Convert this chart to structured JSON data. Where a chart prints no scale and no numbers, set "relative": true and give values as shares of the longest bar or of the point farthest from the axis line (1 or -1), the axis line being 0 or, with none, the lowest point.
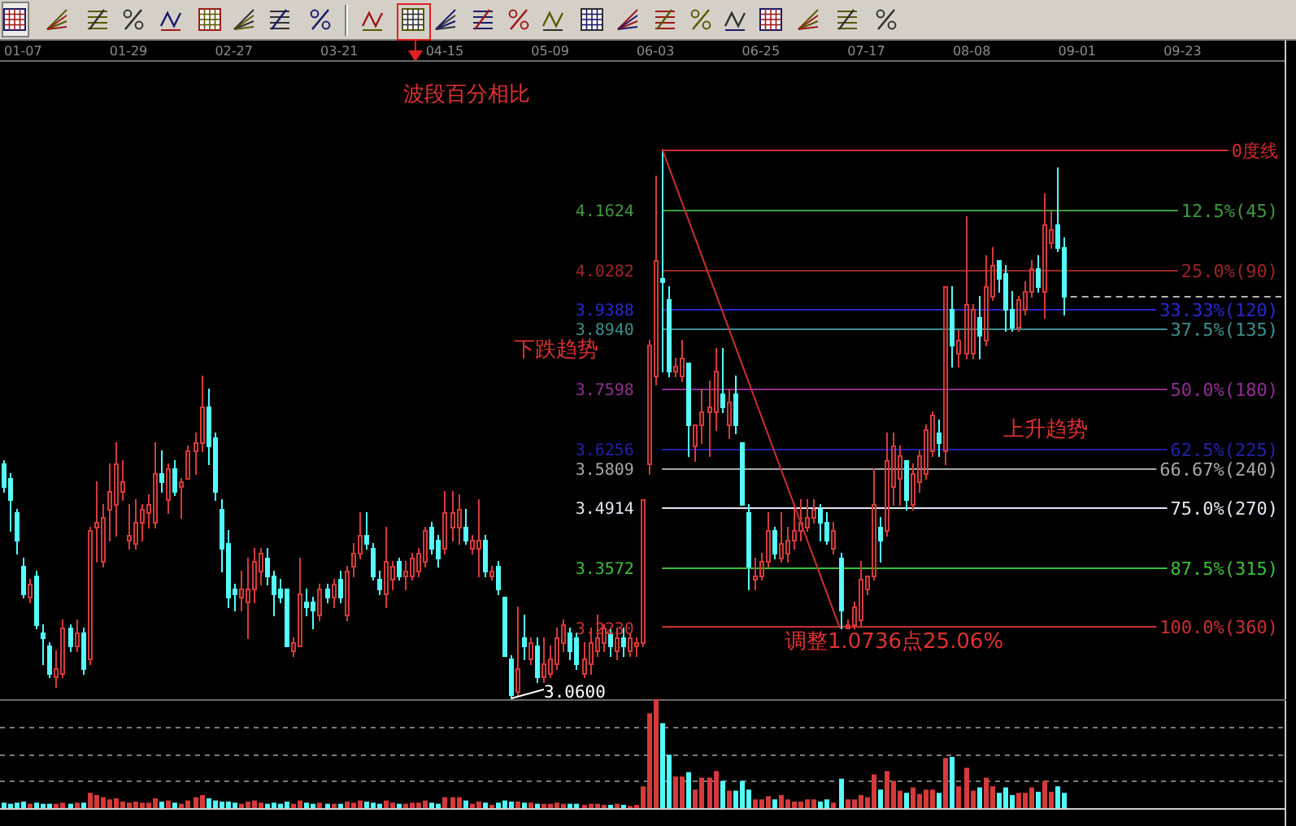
{
  "chart_data": [
    {
      "type": "candlestick",
      "categories": [
        null,
        null,
        null,
        "01-07",
        null,
        null,
        null,
        null,
        null,
        null,
        null,
        null,
        null,
        null,
        null,
        null,
        null,
        null,
        null,
        "01-29",
        null,
        null,
        null,
        null,
        null,
        null,
        null,
        null,
        null,
        null,
        null,
        null,
        null,
        null,
        null,
        "02-27",
        null,
        null,
        null,
        null,
        null,
        null,
        null,
        null,
        null,
        null,
        null,
        null,
        null,
        null,
        null,
        "03-21",
        null,
        null,
        null,
        null,
        null,
        null,
        null,
        null,
        null,
        null,
        null,
        null,
        null,
        null,
        null,
        "04-15",
        null,
        null,
        null,
        null,
        null,
        null,
        null,
        null,
        null,
        null,
        null,
        null,
        null,
        null,
        null,
        "05-09",
        null,
        null,
        null,
        null,
        null,
        null,
        null,
        null,
        null,
        null,
        null,
        null,
        null,
        null,
        null,
        "06-03",
        null,
        null,
        null,
        null,
        null,
        null,
        null,
        null,
        null,
        null,
        null,
        null,
        null,
        null,
        null,
        "06-25",
        null,
        null,
        null,
        null,
        null,
        null,
        null,
        null,
        null,
        null,
        null,
        null,
        null,
        null,
        null,
        "07-17",
        null,
        null,
        null,
        null,
        null,
        null,
        null,
        null,
        null,
        null,
        null,
        null,
        null,
        null,
        null,
        "08-08",
        null,
        null,
        null,
        null,
        null,
        null,
        null,
        null,
        null,
        null,
        null,
        null,
        null,
        null,
        null,
        "09-01",
        null,
        null,
        null,
        null,
        null,
        null,
        null,
        null,
        null,
        null,
        null,
        null,
        null,
        null,
        null,
        "09-23",
        null,
        null,
        null,
        null,
        null,
        null,
        null,
        null,
        null,
        null,
        null,
        null,
        null,
        null,
        null
      ],
      "ohlc": [
        [
          3.59,
          3.6,
          3.53,
          3.54
        ],
        [
          3.56,
          3.57,
          3.44,
          3.51
        ],
        [
          3.48,
          3.49,
          3.39,
          3.42
        ],
        [
          3.36,
          3.38,
          3.29,
          3.3
        ],
        [
          3.29,
          3.33,
          3.28,
          3.32
        ],
        [
          3.34,
          3.35,
          3.22,
          3.23
        ],
        [
          3.21,
          3.23,
          3.14,
          3.2
        ],
        [
          3.18,
          3.19,
          3.11,
          3.12
        ],
        [
          3.11,
          3.17,
          3.09,
          3.13
        ],
        [
          3.12,
          3.24,
          3.11,
          3.22
        ],
        [
          3.22,
          3.23,
          3.17,
          3.18
        ],
        [
          3.18,
          3.24,
          3.17,
          3.21
        ],
        [
          3.21,
          3.22,
          3.12,
          3.13
        ],
        [
          3.15,
          3.45,
          3.14,
          3.44
        ],
        [
          3.45,
          3.55,
          3.37,
          3.46
        ],
        [
          3.37,
          3.5,
          3.36,
          3.47
        ],
        [
          3.49,
          3.59,
          3.42,
          3.53
        ],
        [
          3.5,
          3.64,
          3.43,
          3.59
        ],
        [
          3.53,
          3.6,
          3.51,
          3.55
        ],
        [
          3.42,
          3.5,
          3.4,
          3.43
        ],
        [
          3.41,
          3.51,
          3.4,
          3.46
        ],
        [
          3.46,
          3.5,
          3.42,
          3.49
        ],
        [
          3.48,
          3.52,
          3.45,
          3.5
        ],
        [
          3.46,
          3.64,
          3.45,
          3.57
        ],
        [
          3.57,
          3.62,
          3.53,
          3.55
        ],
        [
          3.51,
          3.59,
          3.48,
          3.58
        ],
        [
          3.58,
          3.6,
          3.52,
          3.53
        ],
        [
          3.54,
          3.56,
          3.47,
          3.55
        ],
        [
          3.56,
          3.63,
          3.56,
          3.62
        ],
        [
          3.62,
          3.66,
          3.57,
          3.64
        ],
        [
          3.64,
          3.79,
          3.62,
          3.72
        ],
        [
          3.72,
          3.76,
          3.59,
          3.63
        ],
        [
          3.65,
          3.66,
          3.51,
          3.53
        ],
        [
          3.49,
          3.51,
          3.35,
          3.4
        ],
        [
          3.41,
          3.44,
          3.27,
          3.29
        ],
        [
          3.31,
          3.32,
          3.26,
          3.3
        ],
        [
          3.29,
          3.35,
          3.26,
          3.31
        ],
        [
          3.28,
          3.38,
          3.2,
          3.31
        ],
        [
          3.31,
          3.4,
          3.28,
          3.37
        ],
        [
          3.35,
          3.4,
          3.32,
          3.39
        ],
        [
          3.38,
          3.4,
          3.32,
          3.34
        ],
        [
          3.34,
          3.35,
          3.25,
          3.3
        ],
        [
          3.31,
          3.33,
          3.28,
          3.29
        ],
        [
          3.31,
          3.31,
          3.18,
          3.18
        ],
        [
          3.17,
          3.2,
          3.16,
          3.19
        ],
        [
          3.18,
          3.38,
          3.18,
          3.3
        ],
        [
          3.28,
          3.31,
          3.25,
          3.27
        ],
        [
          3.28,
          3.29,
          3.22,
          3.26
        ],
        [
          3.25,
          3.32,
          3.24,
          3.31
        ],
        [
          3.31,
          3.32,
          3.28,
          3.29
        ],
        [
          3.29,
          3.33,
          3.27,
          3.32
        ],
        [
          3.33,
          3.35,
          3.28,
          3.29
        ],
        [
          3.25,
          3.36,
          3.24,
          3.35
        ],
        [
          3.36,
          3.41,
          3.34,
          3.39
        ],
        [
          3.39,
          3.48,
          3.38,
          3.43
        ],
        [
          3.43,
          3.48,
          3.4,
          3.41
        ],
        [
          3.4,
          3.41,
          3.33,
          3.34
        ],
        [
          3.33,
          3.35,
          3.3,
          3.31
        ],
        [
          3.3,
          3.45,
          3.27,
          3.37
        ],
        [
          3.33,
          3.37,
          3.31,
          3.36
        ],
        [
          3.37,
          3.38,
          3.33,
          3.34
        ],
        [
          3.34,
          3.37,
          3.31,
          3.35
        ],
        [
          3.34,
          3.39,
          3.33,
          3.38
        ],
        [
          3.35,
          3.4,
          3.34,
          3.39
        ],
        [
          3.37,
          3.45,
          3.36,
          3.44
        ],
        [
          3.45,
          3.46,
          3.39,
          3.4
        ],
        [
          3.42,
          3.43,
          3.36,
          3.38
        ],
        [
          3.4,
          3.53,
          3.39,
          3.48
        ],
        [
          3.45,
          3.53,
          3.42,
          3.48
        ],
        [
          3.45,
          3.52,
          3.41,
          3.49
        ],
        [
          3.45,
          3.49,
          3.41,
          3.42
        ],
        [
          3.4,
          3.43,
          3.39,
          3.42
        ],
        [
          3.4,
          3.51,
          3.34,
          3.42
        ],
        [
          3.42,
          3.43,
          3.34,
          3.35
        ],
        [
          3.34,
          3.36,
          3.33,
          3.35
        ],
        [
          3.36,
          3.37,
          3.3,
          3.31
        ],
        [
          3.29,
          3.29,
          3.16,
          3.16
        ],
        [
          3.15,
          3.16,
          3.06,
          3.07
        ],
        [
          3.08,
          3.27,
          3.07,
          3.13
        ],
        [
          3.2,
          3.25,
          3.15,
          3.18
        ],
        [
          3.15,
          3.2,
          3.14,
          3.19
        ],
        [
          3.18,
          3.2,
          3.1,
          3.11
        ],
        [
          3.11,
          3.2,
          3.1,
          3.14
        ],
        [
          3.12,
          3.18,
          3.11,
          3.15
        ],
        [
          3.14,
          3.22,
          3.13,
          3.2
        ],
        [
          3.19,
          3.24,
          3.17,
          3.23
        ],
        [
          3.21,
          3.22,
          3.15,
          3.17
        ],
        [
          3.2,
          3.21,
          3.13,
          3.14
        ],
        [
          3.12,
          3.19,
          3.11,
          3.15
        ],
        [
          3.14,
          3.22,
          3.12,
          3.19
        ],
        [
          3.17,
          3.25,
          3.16,
          3.2
        ],
        [
          3.19,
          3.23,
          3.17,
          3.22
        ],
        [
          3.21,
          3.22,
          3.16,
          3.18
        ],
        [
          3.17,
          3.22,
          3.15,
          3.2
        ],
        [
          3.2,
          3.22,
          3.16,
          3.18
        ],
        [
          3.17,
          3.21,
          3.16,
          3.2
        ],
        [
          3.18,
          3.2,
          3.16,
          3.19
        ],
        [
          3.19,
          3.51,
          3.18,
          3.51
        ],
        [
          3.59,
          3.87,
          3.57,
          3.86
        ],
        [
          3.79,
          4.24,
          3.77,
          4.05
        ],
        [
          4.01,
          4.3,
          3.8,
          4.0
        ],
        [
          3.96,
          3.99,
          3.79,
          3.8
        ],
        [
          3.8,
          3.83,
          3.79,
          3.81
        ],
        [
          3.79,
          3.87,
          3.78,
          3.83
        ],
        [
          3.82,
          3.82,
          3.61,
          3.68
        ],
        [
          3.63,
          3.68,
          3.6,
          3.68
        ],
        [
          3.68,
          3.76,
          3.64,
          3.71
        ],
        [
          3.71,
          3.78,
          3.61,
          3.72
        ],
        [
          3.71,
          3.85,
          3.67,
          3.8
        ],
        [
          3.75,
          3.85,
          3.71,
          3.72
        ],
        [
          3.68,
          3.76,
          3.65,
          3.73
        ],
        [
          3.75,
          3.79,
          3.66,
          3.68
        ],
        [
          3.64,
          3.64,
          3.5,
          3.5
        ],
        [
          3.48,
          3.5,
          3.31,
          3.36
        ],
        [
          3.33,
          3.38,
          3.31,
          3.34
        ],
        [
          3.34,
          3.39,
          3.33,
          3.37
        ],
        [
          3.37,
          3.48,
          3.36,
          3.44
        ],
        [
          3.44,
          3.45,
          3.38,
          3.39
        ],
        [
          3.38,
          3.48,
          3.37,
          3.41
        ],
        [
          3.39,
          3.45,
          3.37,
          3.42
        ],
        [
          3.42,
          3.49,
          3.4,
          3.44
        ],
        [
          3.44,
          3.51,
          3.42,
          3.46
        ],
        [
          3.45,
          3.51,
          3.44,
          3.47
        ],
        [
          3.47,
          3.51,
          3.46,
          3.49
        ],
        [
          3.49,
          3.5,
          3.42,
          3.46
        ],
        [
          3.46,
          3.48,
          3.41,
          3.42
        ],
        [
          3.4,
          3.46,
          3.39,
          3.44
        ],
        [
          3.38,
          3.39,
          3.22,
          3.26
        ],
        [
          3.22,
          3.24,
          3.22,
          3.23
        ],
        [
          3.23,
          3.28,
          3.22,
          3.27
        ],
        [
          3.24,
          3.37,
          3.23,
          3.33
        ],
        [
          3.31,
          3.34,
          3.3,
          3.34
        ],
        [
          3.34,
          3.58,
          3.33,
          3.5
        ],
        [
          3.45,
          3.47,
          3.37,
          3.42
        ],
        [
          3.44,
          3.66,
          3.43,
          3.6
        ],
        [
          3.54,
          3.66,
          3.5,
          3.63
        ],
        [
          3.56,
          3.63,
          3.5,
          3.61
        ],
        [
          3.6,
          3.6,
          3.49,
          3.51
        ],
        [
          3.5,
          3.59,
          3.49,
          3.57
        ],
        [
          3.55,
          3.62,
          3.53,
          3.61
        ],
        [
          3.57,
          3.68,
          3.56,
          3.67
        ],
        [
          3.62,
          3.71,
          3.61,
          3.7
        ],
        [
          3.66,
          3.69,
          3.61,
          3.64
        ],
        [
          3.62,
          3.99,
          3.59,
          3.99
        ],
        [
          3.94,
          3.99,
          3.81,
          3.86
        ],
        [
          3.84,
          3.89,
          3.81,
          3.87
        ],
        [
          3.84,
          4.15,
          3.83,
          3.95
        ],
        [
          3.84,
          3.95,
          3.83,
          3.94
        ],
        [
          3.92,
          3.97,
          3.83,
          3.88
        ],
        [
          3.87,
          4.06,
          3.86,
          3.99
        ],
        [
          3.97,
          4.08,
          3.96,
          4.04
        ],
        [
          4.05,
          4.05,
          3.98,
          4.01
        ],
        [
          4.02,
          4.04,
          3.89,
          3.94
        ],
        [
          3.94,
          3.98,
          3.89,
          3.9
        ],
        [
          3.9,
          3.97,
          3.89,
          3.96
        ],
        [
          3.94,
          4.0,
          3.93,
          3.98
        ],
        [
          3.98,
          4.05,
          3.97,
          4.03
        ],
        [
          4.03,
          4.06,
          3.98,
          3.99
        ],
        [
          3.98,
          4.2,
          3.92,
          4.13
        ],
        [
          4.09,
          4.16,
          4.08,
          4.12
        ],
        [
          4.13,
          4.26,
          4.07,
          4.08
        ],
        [
          4.08,
          4.1,
          3.93,
          3.97
        ],
        null,
        null,
        null,
        null,
        null,
        null,
        null,
        null,
        null,
        null,
        null,
        null,
        null,
        null,
        null,
        null,
        null,
        null,
        null,
        null,
        null,
        null,
        null,
        null,
        null,
        null,
        null,
        null,
        null,
        null,
        null,
        null,
        null
      ],
      "colors": [
        "#54fcfc",
        "#54fcfc",
        "#54fcfc",
        "#54fcfc",
        "#d63a3a",
        "#54fcfc",
        "#54fcfc",
        "#54fcfc",
        "#d63a3a",
        "#d63a3a",
        "#54fcfc",
        "#d63a3a",
        "#54fcfc",
        "#d63a3a",
        "#d63a3a",
        "#d63a3a",
        "#d63a3a",
        "#d63a3a",
        "#d63a3a",
        "#d63a3a",
        "#d63a3a",
        "#d63a3a",
        "#d63a3a",
        "#d63a3a",
        "#54fcfc",
        "#d63a3a",
        "#54fcfc",
        "#d63a3a",
        "#d63a3a",
        "#d63a3a",
        "#d63a3a",
        "#54fcfc",
        "#54fcfc",
        "#54fcfc",
        "#54fcfc",
        "#54fcfc",
        "#d63a3a",
        "#d63a3a",
        "#d63a3a",
        "#d63a3a",
        "#54fcfc",
        "#54fcfc",
        "#54fcfc",
        "#54fcfc",
        "#d63a3a",
        "#d63a3a",
        "#54fcfc",
        "#54fcfc",
        "#d63a3a",
        "#54fcfc",
        "#d63a3a",
        "#54fcfc",
        "#d63a3a",
        "#d63a3a",
        "#d63a3a",
        "#54fcfc",
        "#54fcfc",
        "#54fcfc",
        "#d63a3a",
        "#d63a3a",
        "#54fcfc",
        "#d63a3a",
        "#d63a3a",
        "#d63a3a",
        "#d63a3a",
        "#54fcfc",
        "#54fcfc",
        "#d63a3a",
        "#d63a3a",
        "#d63a3a",
        "#54fcfc",
        "#d63a3a",
        "#d63a3a",
        "#54fcfc",
        "#d63a3a",
        "#54fcfc",
        "#54fcfc",
        "#54fcfc",
        "#d63a3a",
        "#54fcfc",
        "#d63a3a",
        "#54fcfc",
        "#d63a3a",
        "#d63a3a",
        "#d63a3a",
        "#d63a3a",
        "#54fcfc",
        "#54fcfc",
        "#d63a3a",
        "#d63a3a",
        "#d63a3a",
        "#d63a3a",
        "#54fcfc",
        "#d63a3a",
        "#54fcfc",
        "#d63a3a",
        "#d63a3a",
        "#d63a3a",
        "#d63a3a",
        "#d63a3a",
        "#54fcfc",
        "#54fcfc",
        "#d63a3a",
        "#d63a3a",
        "#54fcfc",
        "#d63a3a",
        "#d63a3a",
        "#d63a3a",
        "#d63a3a",
        "#54fcfc",
        "#d63a3a",
        "#54fcfc",
        "#54fcfc",
        "#54fcfc",
        "#d63a3a",
        "#d63a3a",
        "#d63a3a",
        "#54fcfc",
        "#d63a3a",
        "#d63a3a",
        "#d63a3a",
        "#d63a3a",
        "#d63a3a",
        "#d63a3a",
        "#54fcfc",
        "#54fcfc",
        "#d63a3a",
        "#54fcfc",
        "#d63a3a",
        "#d63a3a",
        "#d63a3a",
        "#d63a3a",
        "#d63a3a",
        "#54fcfc",
        "#d63a3a",
        "#d63a3a",
        "#d63a3a",
        "#54fcfc",
        "#d63a3a",
        "#d63a3a",
        "#d63a3a",
        "#d63a3a",
        "#54fcfc",
        "#d63a3a",
        "#54fcfc",
        "#d63a3a",
        "#d63a3a",
        "#d63a3a",
        "#54fcfc",
        "#d63a3a",
        "#d63a3a",
        "#54fcfc",
        "#54fcfc",
        "#54fcfc",
        "#d63a3a",
        "#d63a3a",
        "#d63a3a",
        "#54fcfc",
        "#d63a3a",
        "#d63a3a",
        "#54fcfc",
        "#54fcfc",
        null,
        null,
        null,
        null,
        null,
        null,
        null,
        null,
        null,
        null,
        null,
        null,
        null,
        null,
        null,
        null,
        null,
        null,
        null,
        null,
        null,
        null,
        null,
        null,
        null,
        null,
        null,
        null,
        null,
        null,
        null,
        null,
        null
      ],
      "ylim": [
        3.06,
        4.5
      ],
      "yticks": [
        4.1624,
        4.0282,
        3.9388,
        {
          "value": 3.894,
          "label": "3.8940"
        },
        3.7598,
        3.6256,
        3.5809,
        3.4914,
        3.3572,
        {
          "value": 3.223,
          "label": "3.2230"
        }
      ],
      "y2lim": [
        115.2,
        -18.9
      ],
      "ref_lines": [
        {
          "axis": "y2",
          "value": 0,
          "label": "0度线",
          "color": "#d42a2a"
        },
        {
          "axis": "y2",
          "value": 12.5,
          "label": "12.5%(45)",
          "color": "#3f9a3f"
        },
        {
          "axis": "y2",
          "value": 25,
          "label": "25.0%(90)",
          "color": "#9c2626"
        },
        {
          "axis": "y2",
          "value": 33.33,
          "label": "33.33%(120)",
          "color": "#2828d0"
        },
        {
          "axis": "y2",
          "value": 37.5,
          "label": "37.5%(135)",
          "color": "#3c9090"
        },
        {
          "axis": "y2",
          "value": 50,
          "label": "50.0%(180)",
          "color": "#922e92"
        },
        {
          "axis": "y2",
          "value": 62.5,
          "label": "62.5%(225)",
          "color": "#2222aa"
        },
        {
          "axis": "y2",
          "value": 66.67,
          "label": "66.67%(240)",
          "color": "#a8a8a8"
        },
        {
          "axis": "y2",
          "value": 75,
          "label": "75.0%(270)",
          "color": "#e6e6f6"
        },
        {
          "axis": "y2",
          "value": 87.5,
          "label": "87.5%(315)",
          "color": "#3cc03c"
        },
        {
          "axis": "y2",
          "value": 100,
          "label": "100.0%(360)",
          "color": "#cc3030"
        },
        {
          "axis": "y",
          "value": 3.97,
          "color": "#b4b4b4",
          "line_style": "dashed"
        }
      ],
      "series": [
        {
          "type": "line",
          "color": "#cc3030",
          "values": [
            null,
            null,
            null,
            null,
            null,
            null,
            null,
            null,
            null,
            null,
            null,
            null,
            null,
            null,
            null,
            null,
            null,
            null,
            null,
            null,
            null,
            null,
            null,
            null,
            null,
            null,
            null,
            null,
            null,
            null,
            null,
            null,
            null,
            null,
            null,
            null,
            null,
            null,
            null,
            null,
            null,
            null,
            null,
            null,
            null,
            null,
            null,
            null,
            null,
            null,
            null,
            null,
            null,
            null,
            null,
            null,
            null,
            null,
            null,
            null,
            null,
            null,
            null,
            null,
            null,
            null,
            null,
            null,
            null,
            null,
            null,
            null,
            null,
            null,
            null,
            null,
            null,
            null,
            null,
            null,
            null,
            null,
            null,
            null,
            null,
            null,
            null,
            null,
            null,
            null,
            null,
            null,
            null,
            null,
            null,
            null,
            null,
            null,
            null,
            null,
            4.3,
            null,
            null,
            null,
            null,
            null,
            null,
            null,
            null,
            null,
            null,
            null,
            null,
            null,
            null,
            null,
            null,
            null,
            null,
            null,
            null,
            null,
            null,
            null,
            null,
            null,
            null,
            3.22,
            null,
            null,
            null,
            null,
            null,
            null,
            null,
            null,
            null,
            null,
            null,
            null,
            null,
            null,
            null,
            null,
            null,
            null,
            null,
            null,
            null,
            null,
            null,
            null,
            null,
            null,
            null,
            null,
            null,
            null,
            null,
            null,
            null,
            null,
            null,
            null,
            null,
            null,
            null,
            null,
            null,
            null,
            null,
            null,
            null,
            null,
            null,
            null,
            null,
            null,
            null,
            null,
            null,
            null,
            null,
            null,
            null,
            null,
            null,
            null,
            null,
            null,
            null,
            null,
            null,
            null,
            null
          ]
        }
      ],
      "annotations": [
        "波段百分相比",
        "下跌趋势",
        "上升趋势",
        {
          "text": "调整1.0736点25.06%",
          "y": 3.223
        },
        "3.0600"
      ]
    },
    {
      "type": "bar",
      "categories": [
        null,
        null,
        null,
        null,
        null,
        null,
        null,
        null,
        null,
        null,
        null,
        null,
        null,
        null,
        null,
        null,
        null,
        null,
        null,
        null,
        null,
        null,
        null,
        null,
        null,
        null,
        null,
        null,
        null,
        null,
        null,
        null,
        null,
        null,
        null,
        null,
        null,
        null,
        null,
        null,
        null,
        null,
        null,
        null,
        null,
        null,
        null,
        null,
        null,
        null,
        null,
        null,
        null,
        null,
        null,
        null,
        null,
        null,
        null,
        null,
        null,
        null,
        null,
        null,
        null,
        null,
        null,
        null,
        null,
        null,
        null,
        null,
        null,
        null,
        null,
        null,
        null,
        null,
        null,
        null,
        null,
        null,
        null,
        null,
        null,
        null,
        null,
        null,
        null,
        null,
        null,
        null,
        null,
        null,
        null,
        null,
        null,
        null,
        null,
        null,
        null,
        null,
        null,
        null,
        null,
        null,
        null,
        null,
        null,
        null,
        null,
        null,
        null,
        null,
        null,
        null,
        null,
        null,
        null,
        null,
        null,
        null,
        null,
        null,
        null,
        null,
        null,
        null,
        null,
        null,
        null,
        null,
        null,
        null,
        null,
        null,
        null,
        null,
        null,
        null,
        null,
        null,
        null,
        null,
        null,
        null,
        null,
        null,
        null,
        null,
        null,
        null,
        null,
        null,
        null,
        null,
        null,
        null,
        null,
        null,
        null,
        null,
        null,
        null,
        null,
        null,
        null,
        null,
        null,
        null,
        null,
        null,
        null,
        null,
        null,
        null,
        null,
        null,
        null,
        null,
        null,
        null,
        null,
        null,
        null,
        null,
        null,
        null,
        null,
        null,
        null,
        null,
        null,
        null,
        null
      ],
      "values": [
        0.05,
        0.04,
        0.05,
        0.06,
        0.04,
        0.05,
        0.04,
        0.04,
        0.04,
        0.05,
        0.04,
        0.05,
        0.05,
        0.14,
        0.12,
        0.1,
        0.08,
        0.09,
        0.06,
        0.05,
        0.06,
        0.05,
        0.05,
        0.09,
        0.06,
        0.07,
        0.05,
        0.04,
        0.07,
        0.1,
        0.12,
        0.09,
        0.07,
        0.06,
        0.06,
        0.05,
        0.04,
        0.06,
        0.07,
        0.05,
        0.04,
        0.05,
        0.04,
        0.06,
        0.04,
        0.07,
        0.05,
        0.04,
        0.05,
        0.04,
        0.04,
        0.04,
        0.06,
        0.05,
        0.07,
        0.06,
        0.05,
        0.04,
        0.07,
        0.05,
        0.04,
        0.04,
        0.05,
        0.05,
        0.07,
        0.05,
        0.04,
        0.1,
        0.1,
        0.1,
        0.07,
        0.04,
        0.06,
        0.05,
        0.03,
        0.05,
        0.07,
        0.06,
        0.06,
        0.05,
        0.05,
        0.04,
        0.04,
        0.04,
        0.05,
        0.04,
        0.04,
        0.04,
        0.03,
        0.04,
        0.04,
        0.03,
        0.03,
        0.04,
        0.03,
        0.02,
        0.03,
        0.2,
        0.87,
        1.0,
        0.78,
        0.49,
        0.29,
        0.29,
        0.33,
        0.17,
        0.28,
        0.28,
        0.34,
        0.25,
        0.16,
        0.16,
        0.25,
        0.17,
        0.08,
        0.08,
        0.11,
        0.08,
        0.12,
        0.08,
        0.06,
        0.06,
        0.08,
        0.08,
        0.06,
        0.08,
        0.05,
        0.27,
        0.08,
        0.08,
        0.12,
        0.1,
        0.31,
        0.17,
        0.34,
        0.25,
        0.16,
        0.14,
        0.19,
        0.13,
        0.17,
        0.17,
        0.14,
        0.46,
        0.47,
        0.2,
        0.37,
        0.16,
        0.19,
        0.28,
        0.2,
        0.14,
        0.19,
        0.12,
        0.14,
        0.14,
        0.19,
        0.15,
        0.25,
        0.15,
        0.2,
        0.14,
        null,
        null,
        null,
        null,
        null,
        null,
        null,
        null,
        null,
        null,
        null,
        null,
        null,
        null,
        null,
        null,
        null,
        null,
        null,
        null,
        null,
        null,
        null,
        null,
        null,
        null,
        null,
        null,
        null,
        null,
        null,
        null,
        null
      ],
      "colors": [
        "#54fcfc",
        "#54fcfc",
        "#54fcfc",
        "#54fcfc",
        "#d63a3a",
        "#54fcfc",
        "#54fcfc",
        "#54fcfc",
        "#d63a3a",
        "#d63a3a",
        "#54fcfc",
        "#d63a3a",
        "#54fcfc",
        "#d63a3a",
        "#d63a3a",
        "#d63a3a",
        "#d63a3a",
        "#d63a3a",
        "#d63a3a",
        "#d63a3a",
        "#d63a3a",
        "#d63a3a",
        "#d63a3a",
        "#d63a3a",
        "#54fcfc",
        "#d63a3a",
        "#54fcfc",
        "#d63a3a",
        "#d63a3a",
        "#d63a3a",
        "#d63a3a",
        "#54fcfc",
        "#54fcfc",
        "#54fcfc",
        "#54fcfc",
        "#54fcfc",
        "#d63a3a",
        "#d63a3a",
        "#d63a3a",
        "#d63a3a",
        "#54fcfc",
        "#54fcfc",
        "#54fcfc",
        "#54fcfc",
        "#d63a3a",
        "#d63a3a",
        "#54fcfc",
        "#54fcfc",
        "#d63a3a",
        "#54fcfc",
        "#d63a3a",
        "#54fcfc",
        "#d63a3a",
        "#d63a3a",
        "#d63a3a",
        "#54fcfc",
        "#54fcfc",
        "#54fcfc",
        "#d63a3a",
        "#d63a3a",
        "#54fcfc",
        "#d63a3a",
        "#d63a3a",
        "#d63a3a",
        "#d63a3a",
        "#54fcfc",
        "#54fcfc",
        "#d63a3a",
        "#d63a3a",
        "#d63a3a",
        "#54fcfc",
        "#d63a3a",
        "#d63a3a",
        "#54fcfc",
        "#d63a3a",
        "#54fcfc",
        "#54fcfc",
        "#54fcfc",
        "#d63a3a",
        "#54fcfc",
        "#d63a3a",
        "#54fcfc",
        "#d63a3a",
        "#d63a3a",
        "#d63a3a",
        "#d63a3a",
        "#54fcfc",
        "#54fcfc",
        "#d63a3a",
        "#d63a3a",
        "#d63a3a",
        "#d63a3a",
        "#54fcfc",
        "#d63a3a",
        "#54fcfc",
        "#d63a3a",
        "#d63a3a",
        "#d63a3a",
        "#d63a3a",
        "#d63a3a",
        "#54fcfc",
        "#54fcfc",
        "#d63a3a",
        "#d63a3a",
        "#54fcfc",
        "#d63a3a",
        "#d63a3a",
        "#d63a3a",
        "#d63a3a",
        "#54fcfc",
        "#d63a3a",
        "#54fcfc",
        "#54fcfc",
        "#54fcfc",
        "#d63a3a",
        "#d63a3a",
        "#d63a3a",
        "#54fcfc",
        "#d63a3a",
        "#d63a3a",
        "#d63a3a",
        "#d63a3a",
        "#d63a3a",
        "#d63a3a",
        "#54fcfc",
        "#54fcfc",
        "#d63a3a",
        "#54fcfc",
        "#d63a3a",
        "#d63a3a",
        "#d63a3a",
        "#d63a3a",
        "#d63a3a",
        "#54fcfc",
        "#d63a3a",
        "#d63a3a",
        "#d63a3a",
        "#54fcfc",
        "#d63a3a",
        "#d63a3a",
        "#d63a3a",
        "#d63a3a",
        "#54fcfc",
        "#d63a3a",
        "#54fcfc",
        "#d63a3a",
        "#d63a3a",
        "#d63a3a",
        "#54fcfc",
        "#d63a3a",
        "#d63a3a",
        "#54fcfc",
        "#54fcfc",
        "#54fcfc",
        "#d63a3a",
        "#d63a3a",
        "#d63a3a",
        "#54fcfc",
        "#d63a3a",
        "#d63a3a",
        "#54fcfc",
        "#54fcfc",
        null,
        null,
        null,
        null,
        null,
        null,
        null,
        null,
        null,
        null,
        null,
        null,
        null,
        null,
        null,
        null,
        null,
        null,
        null,
        null,
        null,
        null,
        null,
        null,
        null,
        null,
        null,
        null,
        null,
        null,
        null,
        null,
        null
      ],
      "relative": true,
      "grid": "y"
    }
  ]
}
